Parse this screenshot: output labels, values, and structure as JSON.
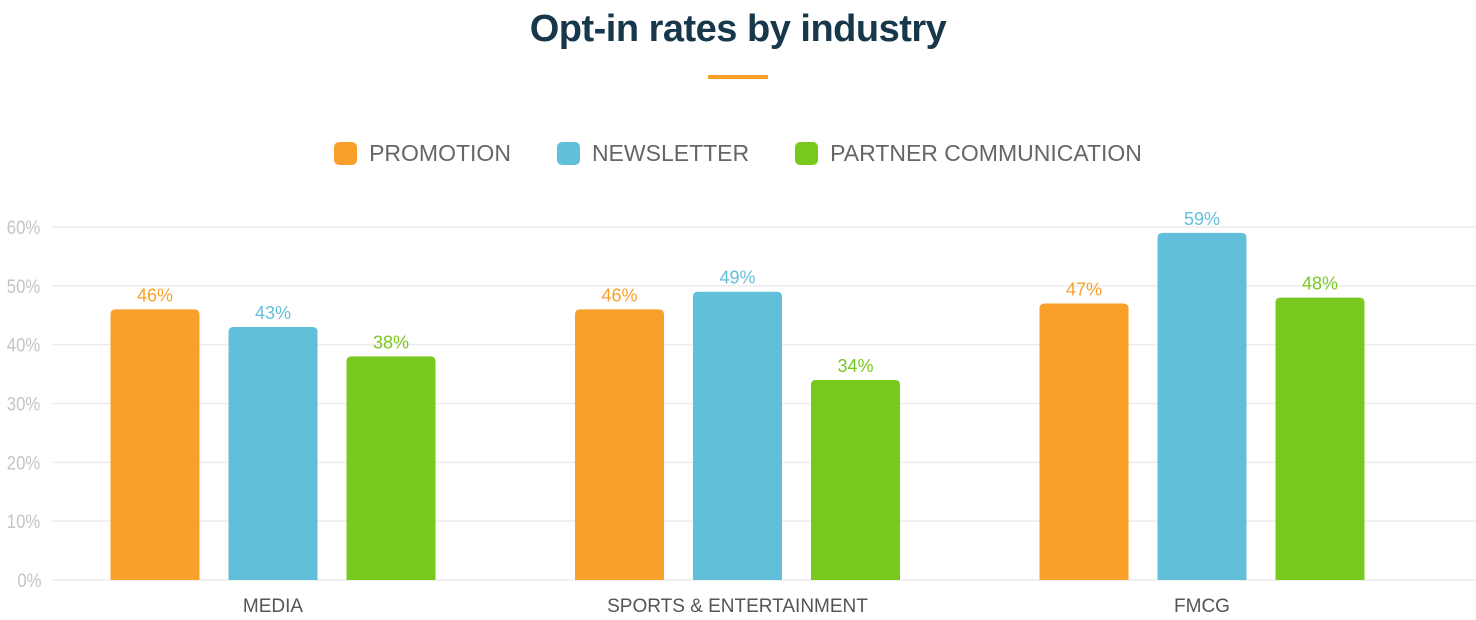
{
  "chart_data": {
    "type": "bar",
    "title": "Opt-in rates by industry",
    "categories": [
      "MEDIA",
      "SPORTS & ENTERTAINMENT",
      "FMCG"
    ],
    "series": [
      {
        "name": "PROMOTION",
        "color": "#f9a02a",
        "values": [
          46,
          46,
          47
        ]
      },
      {
        "name": "NEWSLETTER",
        "color": "#62bfd9",
        "values": [
          43,
          49,
          59
        ]
      },
      {
        "name": "PARTNER COMMUNICATION",
        "color": "#78c81f",
        "values": [
          38,
          34,
          48
        ]
      }
    ],
    "ylim": [
      0,
      60
    ],
    "yticks": [
      "0%",
      "10%",
      "20%",
      "30%",
      "40%",
      "50%",
      "60%"
    ],
    "value_suffix": "%",
    "grid": true,
    "legend_position": "top-center",
    "accent_color": "#f9a02a"
  }
}
